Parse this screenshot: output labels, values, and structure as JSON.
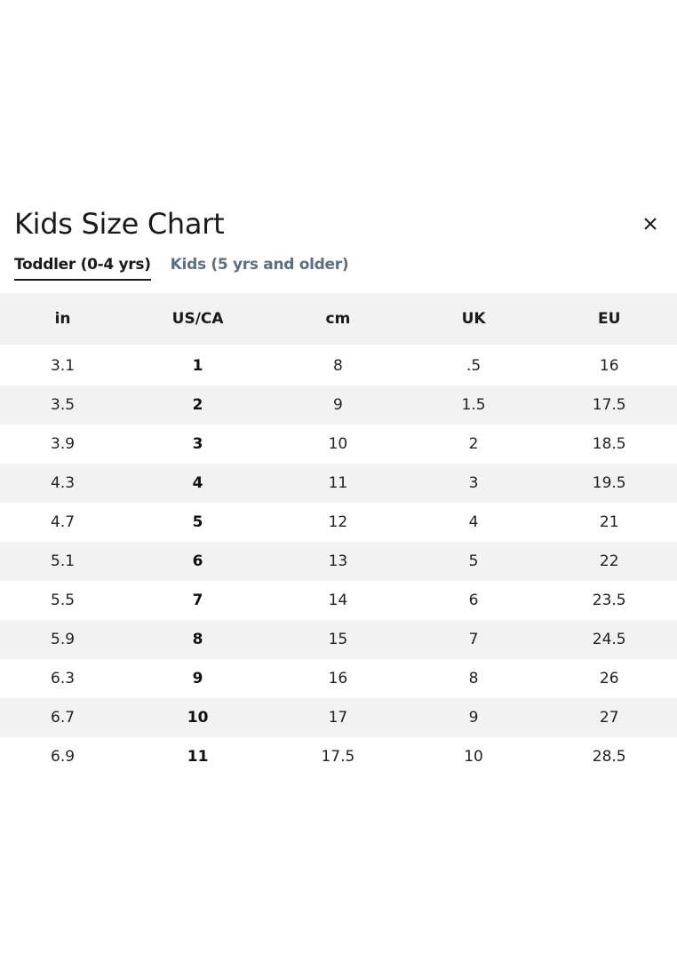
{
  "modal": {
    "title": "Kids Size Chart",
    "close_icon": "close-icon",
    "tabs": [
      {
        "label": "Toddler (0-4 yrs)",
        "active": true
      },
      {
        "label": "Kids (5 yrs and older)",
        "active": false
      }
    ]
  },
  "table": {
    "headers": [
      "in",
      "US/CA",
      "cm",
      "UK",
      "EU"
    ],
    "rows": [
      [
        "3.1",
        "1",
        "8",
        ".5",
        "16"
      ],
      [
        "3.5",
        "2",
        "9",
        "1.5",
        "17.5"
      ],
      [
        "3.9",
        "3",
        "10",
        "2",
        "18.5"
      ],
      [
        "4.3",
        "4",
        "11",
        "3",
        "19.5"
      ],
      [
        "4.7",
        "5",
        "12",
        "4",
        "21"
      ],
      [
        "5.1",
        "6",
        "13",
        "5",
        "22"
      ],
      [
        "5.5",
        "7",
        "14",
        "6",
        "23.5"
      ],
      [
        "5.9",
        "8",
        "15",
        "7",
        "24.5"
      ],
      [
        "6.3",
        "9",
        "16",
        "8",
        "26"
      ],
      [
        "6.7",
        "10",
        "17",
        "9",
        "27"
      ],
      [
        "6.9",
        "11",
        "17.5",
        "10",
        "28.5"
      ]
    ]
  },
  "colors": {
    "text": "#1a1a1a",
    "inactive_tab": "#5a7080",
    "stripe": "#f2f2f2",
    "background": "#ffffff"
  }
}
